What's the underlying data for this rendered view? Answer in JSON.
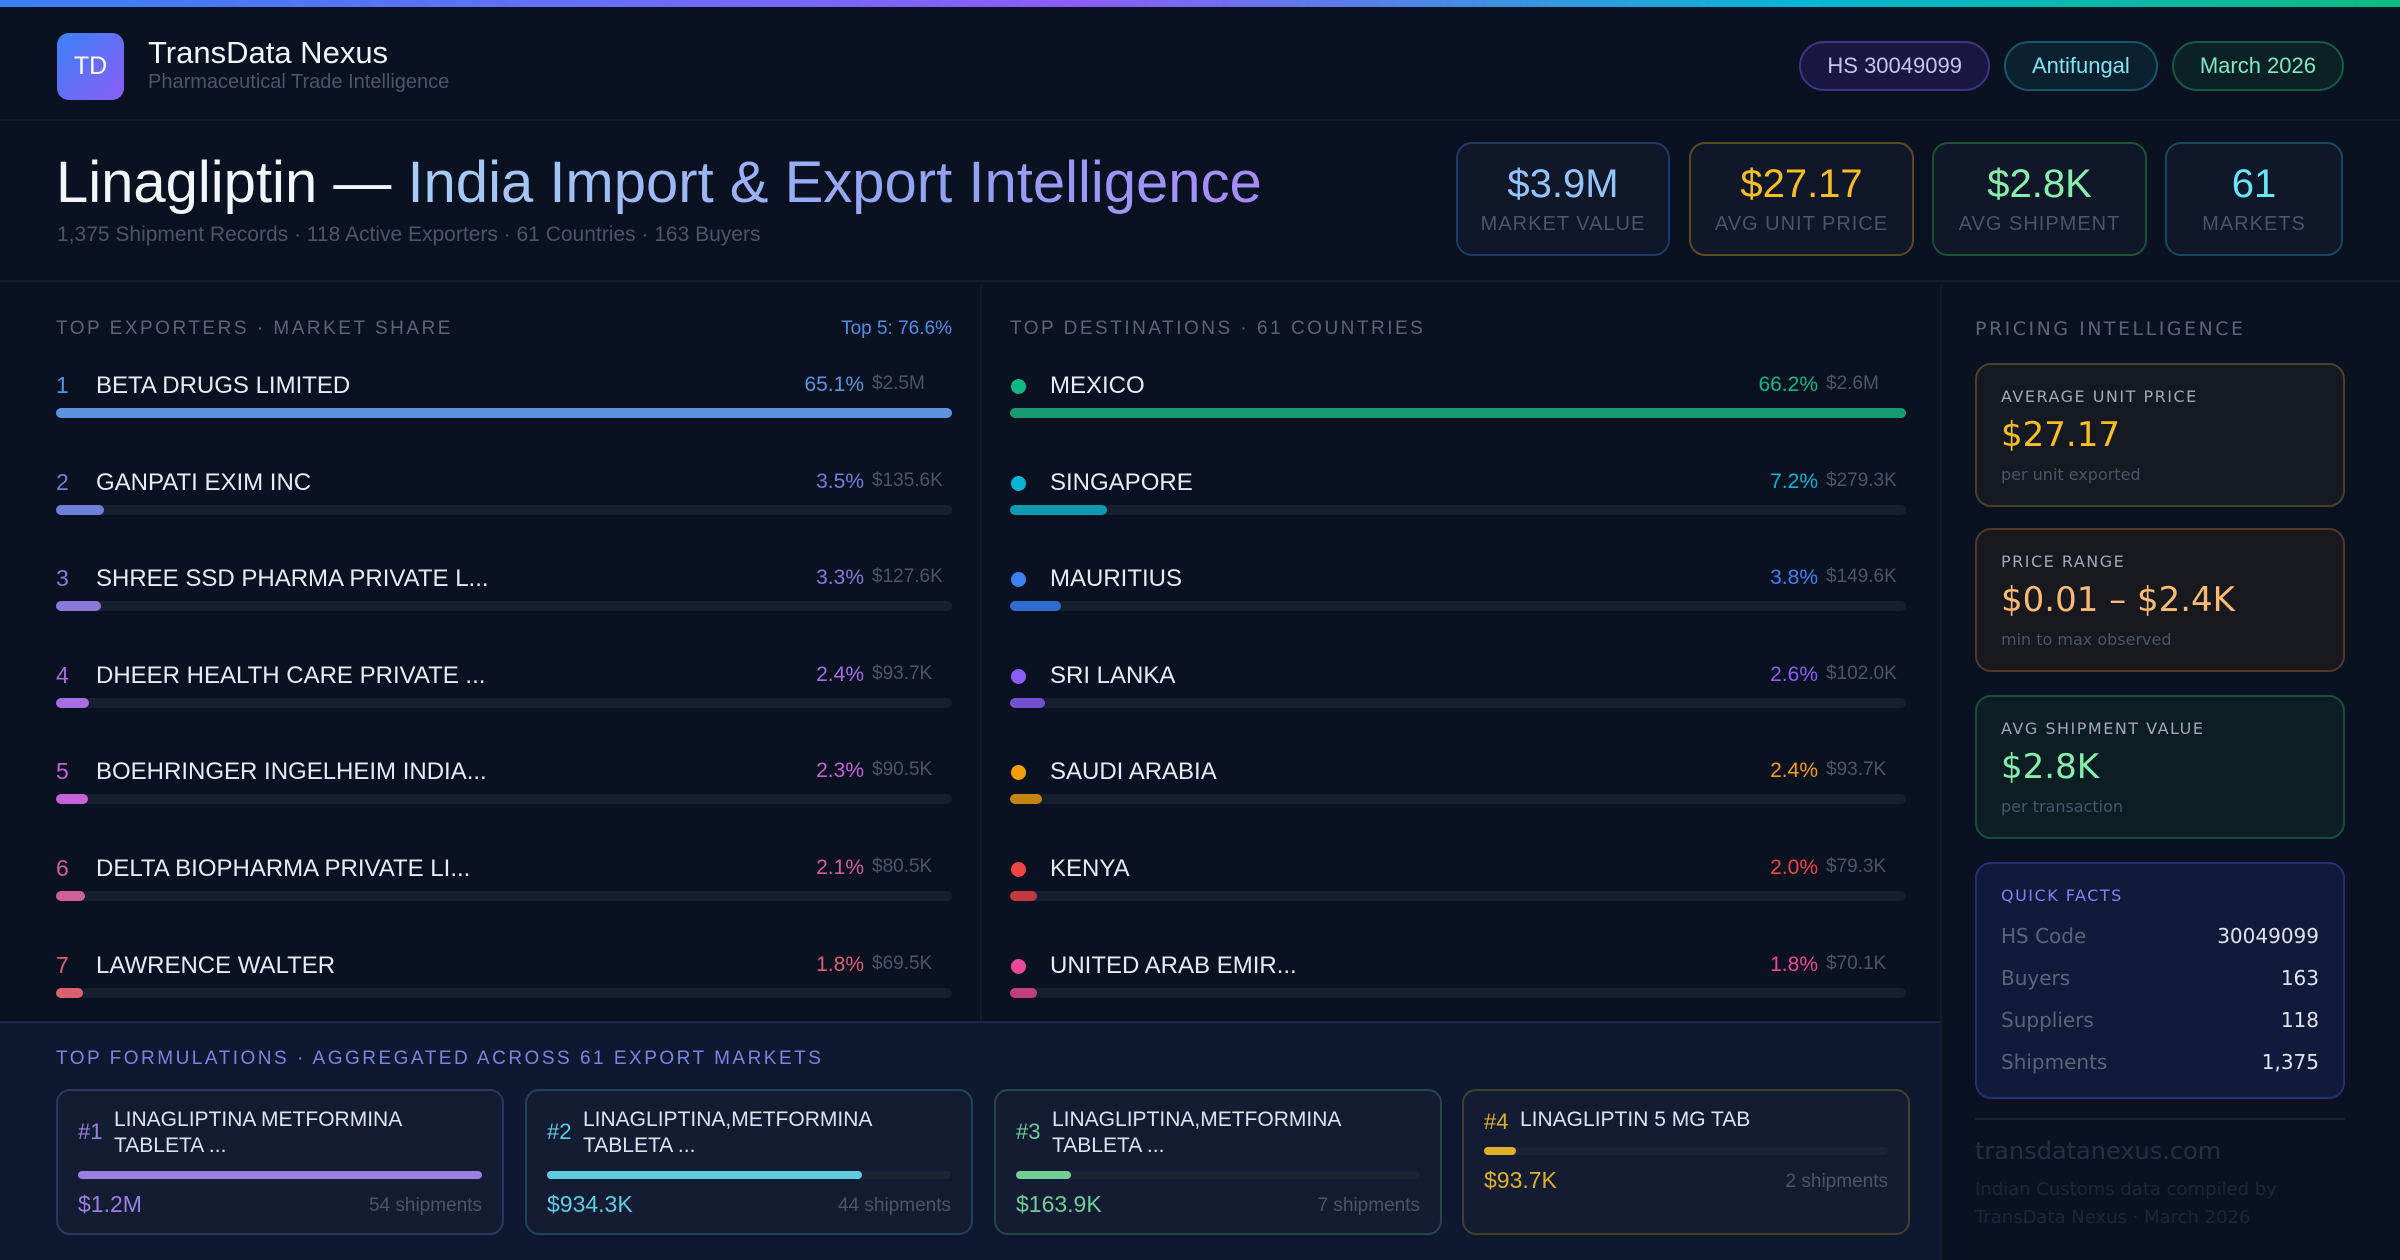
{
  "brand": {
    "logo": "TD",
    "name": "TransData Nexus",
    "tagline": "Pharmaceutical Trade Intelligence"
  },
  "pills": [
    {
      "label": "HS 30049099",
      "color": "#c7c3f5",
      "border": "#3d3585",
      "bg": "#1a1740"
    },
    {
      "label": "Antifungal",
      "color": "#7fe3f0",
      "border": "#15566a",
      "bg": "#0c2130"
    },
    {
      "label": "March 2026",
      "color": "#7ee8c0",
      "border": "#155a45",
      "bg": "#0b2126"
    }
  ],
  "hero": {
    "title_a": "Linagliptin — ",
    "title_b": "India Import & Export Intelligence",
    "subtitle": "1,375 Shipment Records · 118 Active Exporters · 61 Countries · 163 Buyers"
  },
  "kpis": [
    {
      "value": "$3.9M",
      "label": "MARKET VALUE",
      "color": "#93c5fd",
      "border": "#1e3a6a"
    },
    {
      "value": "$27.17",
      "label": "AVG UNIT PRICE",
      "color": "#fbbf24",
      "border": "#5c4a1e"
    },
    {
      "value": "$2.8K",
      "label": "AVG SHIPMENT",
      "color": "#86efac",
      "border": "#1a5236"
    },
    {
      "value": "61",
      "label": "MARKETS",
      "color": "#67e8f9",
      "border": "#16495c"
    }
  ],
  "exporters": {
    "title": "TOP EXPORTERS · MARKET SHARE",
    "summary": "Top 5: 76.6%",
    "items": [
      {
        "rank": "1",
        "name": "BETA DRUGS LIMITED",
        "pct": "65.1%",
        "share": 65.1,
        "amount": "$2.5M",
        "color": "#5b93e0"
      },
      {
        "rank": "2",
        "name": "GANPATI EXIM INC",
        "pct": "3.5%",
        "share": 3.5,
        "amount": "$135.6K",
        "color": "#6f7fdc"
      },
      {
        "rank": "3",
        "name": "SHREE SSD PHARMA PRIVATE L...",
        "pct": "3.3%",
        "share": 3.3,
        "amount": "$127.6K",
        "color": "#8a78dc"
      },
      {
        "rank": "4",
        "name": "DHEER HEALTH CARE PRIVATE ...",
        "pct": "2.4%",
        "share": 2.4,
        "amount": "$93.7K",
        "color": "#a66ee0"
      },
      {
        "rank": "5",
        "name": "BOEHRINGER INGELHEIM INDIA...",
        "pct": "2.3%",
        "share": 2.3,
        "amount": "$90.5K",
        "color": "#c463d6"
      },
      {
        "rank": "6",
        "name": "DELTA BIOPHARMA PRIVATE LI...",
        "pct": "2.1%",
        "share": 2.1,
        "amount": "$80.5K",
        "color": "#d1609a"
      },
      {
        "rank": "7",
        "name": "LAWRENCE WALTER",
        "pct": "1.8%",
        "share": 1.8,
        "amount": "$69.5K",
        "color": "#d9626e"
      }
    ]
  },
  "destinations": {
    "title": "TOP DESTINATIONS · 61 COUNTRIES",
    "items": [
      {
        "name": "MEXICO",
        "pct": "66.2%",
        "share": 66.2,
        "amount": "$2.6M",
        "color": "#10b981",
        "bar": "#169a72"
      },
      {
        "name": "SINGAPORE",
        "pct": "7.2%",
        "share": 7.2,
        "amount": "$279.3K",
        "color": "#06b6d4",
        "bar": "#0e97b0"
      },
      {
        "name": "MAURITIUS",
        "pct": "3.8%",
        "share": 3.8,
        "amount": "$149.6K",
        "color": "#3b82f6",
        "bar": "#2f6cd0"
      },
      {
        "name": "SRI LANKA",
        "pct": "2.6%",
        "share": 2.6,
        "amount": "$102.0K",
        "color": "#8b5cf6",
        "bar": "#7350d0"
      },
      {
        "name": "SAUDI ARABIA",
        "pct": "2.4%",
        "share": 2.4,
        "amount": "$93.7K",
        "color": "#f59e0b",
        "bar": "#c48412"
      },
      {
        "name": "KENYA",
        "pct": "2.0%",
        "share": 2.0,
        "amount": "$79.3K",
        "color": "#ef4444",
        "bar": "#c03a3e"
      },
      {
        "name": "UNITED ARAB EMIR...",
        "pct": "1.8%",
        "share": 1.8,
        "amount": "$70.1K",
        "color": "#ec4899",
        "bar": "#c0407e"
      }
    ]
  },
  "formulations": {
    "title": "TOP FORMULATIONS · AGGREGATED ACROSS 61 EXPORT MARKETS",
    "items": [
      {
        "num": "#1",
        "name": "LINAGLIPTINA METFORMINA TABLETA ...",
        "value": "$1.2M",
        "amount": 1200,
        "shipments": "54 shipments",
        "color": "#9b80e0",
        "border": "#2d3560"
      },
      {
        "num": "#2",
        "name": "LINAGLIPTINA,METFORMINA TABLETA ...",
        "value": "$934.3K",
        "amount": 934.3,
        "shipments": "44 shipments",
        "color": "#5ecde0",
        "border": "#21445a"
      },
      {
        "num": "#3",
        "name": "LINAGLIPTINA,METFORMINA TABLETA ...",
        "value": "$163.9K",
        "amount": 163.9,
        "shipments": "7 shipments",
        "color": "#6fcf97",
        "border": "#25464a"
      },
      {
        "num": "#4",
        "name": "LINAGLIPTIN 5 MG TAB",
        "value": "$93.7K",
        "amount": 93.7,
        "shipments": "2 shipments",
        "color": "#e0b02a",
        "border": "#45402a"
      }
    ]
  },
  "pricing": {
    "title": "PRICING INTELLIGENCE",
    "cards": [
      {
        "label": "AVERAGE UNIT PRICE",
        "value": "$27.17",
        "sub": "per unit exported",
        "color": "#fbbf24",
        "border": "#4a4226",
        "bg": "#151a22"
      },
      {
        "label": "PRICE RANGE",
        "value": "$0.01 – $2.4K",
        "sub": "min to max observed",
        "color": "#fdba74",
        "border": "#54392a",
        "bg": "#18181f"
      },
      {
        "label": "AVG SHIPMENT VALUE",
        "value": "$2.8K",
        "sub": "per transaction",
        "color": "#86efac",
        "border": "#1a4e3a",
        "bg": "#0d1d24"
      }
    ],
    "quick_facts": {
      "title": "QUICK FACTS",
      "rows": [
        {
          "k": "HS Code",
          "v": "30049099"
        },
        {
          "k": "Buyers",
          "v": "163"
        },
        {
          "k": "Suppliers",
          "v": "118"
        },
        {
          "k": "Shipments",
          "v": "1,375"
        }
      ]
    },
    "footer_url": "transdatanexus.com",
    "footer_note": "Indian Customs data compiled by TransData Nexus · March 2026"
  }
}
